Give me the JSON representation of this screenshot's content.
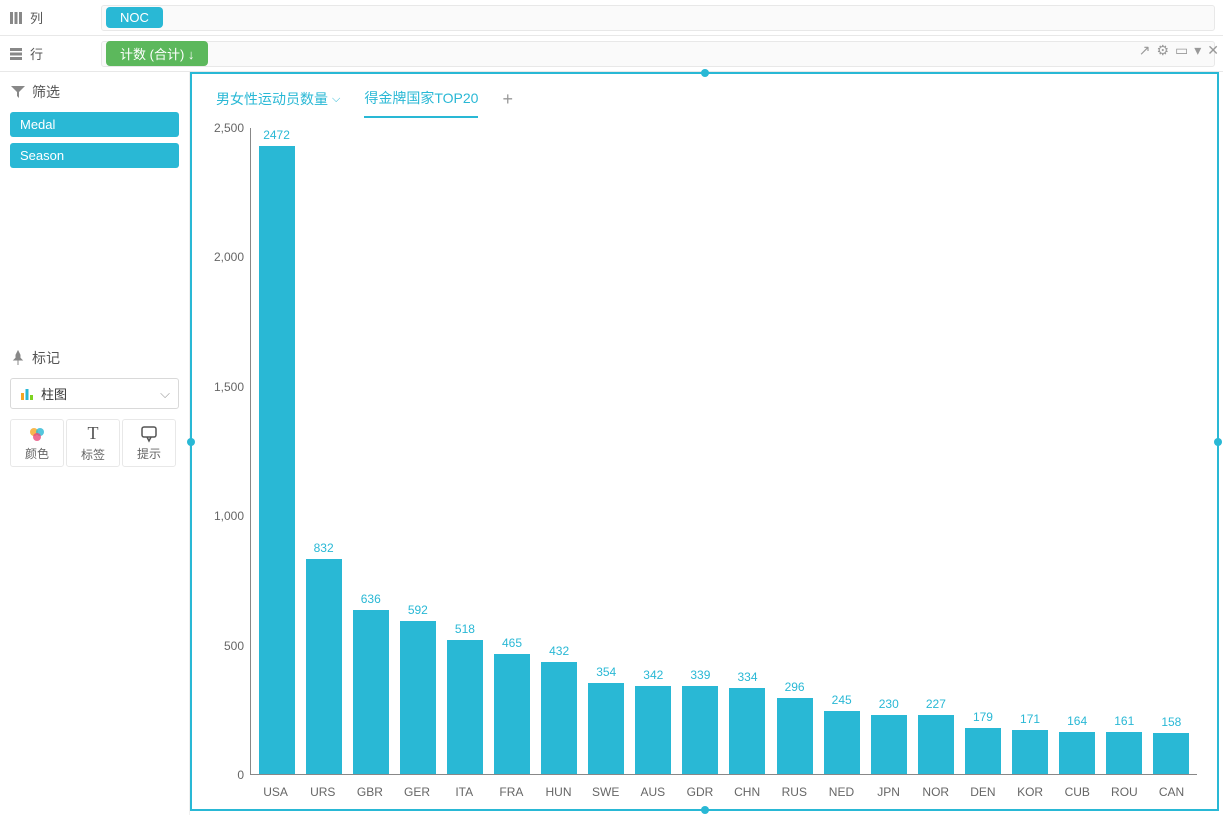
{
  "shelves": {
    "columns": {
      "label": "列",
      "pill": "NOC",
      "pill_color": "#29b8d5"
    },
    "rows": {
      "label": "行",
      "pill": "计数 (合计) ↓",
      "pill_color": "#5cb85c"
    }
  },
  "filter": {
    "header": "筛选",
    "items": [
      "Medal",
      "Season"
    ]
  },
  "marks": {
    "header": "标记",
    "type_label": "柱图",
    "icons": [
      {
        "name": "color-icon",
        "label": "颜色"
      },
      {
        "name": "label-icon",
        "label": "标签"
      },
      {
        "name": "tooltip-icon",
        "label": "提示"
      }
    ]
  },
  "panel_toolbar": [
    "↗",
    "⚙",
    "▭",
    "▾",
    "✕"
  ],
  "tabs": {
    "items": [
      {
        "label": "男女性运动员数量",
        "active": false,
        "has_dropdown": true
      },
      {
        "label": "得金牌国家TOP20",
        "active": true,
        "has_dropdown": false
      }
    ]
  },
  "chart": {
    "type": "bar",
    "bar_color": "#29b8d5",
    "label_color": "#29b8d5",
    "axis_color": "#888888",
    "background_color": "#ffffff",
    "label_fontsize": 12,
    "ylim": [
      0,
      2500
    ],
    "yticks": [
      0,
      500,
      1000,
      1500,
      2000,
      2500
    ],
    "ytick_labels": [
      "0",
      "500",
      "1,000",
      "1,500",
      "2,000",
      "2,500"
    ],
    "categories": [
      "USA",
      "URS",
      "GBR",
      "GER",
      "ITA",
      "FRA",
      "HUN",
      "SWE",
      "AUS",
      "GDR",
      "CHN",
      "RUS",
      "NED",
      "JPN",
      "NOR",
      "DEN",
      "KOR",
      "CUB",
      "ROU",
      "CAN"
    ],
    "values": [
      2472,
      832,
      636,
      592,
      518,
      465,
      432,
      354,
      342,
      339,
      334,
      296,
      245,
      230,
      227,
      179,
      171,
      164,
      161,
      158
    ]
  }
}
